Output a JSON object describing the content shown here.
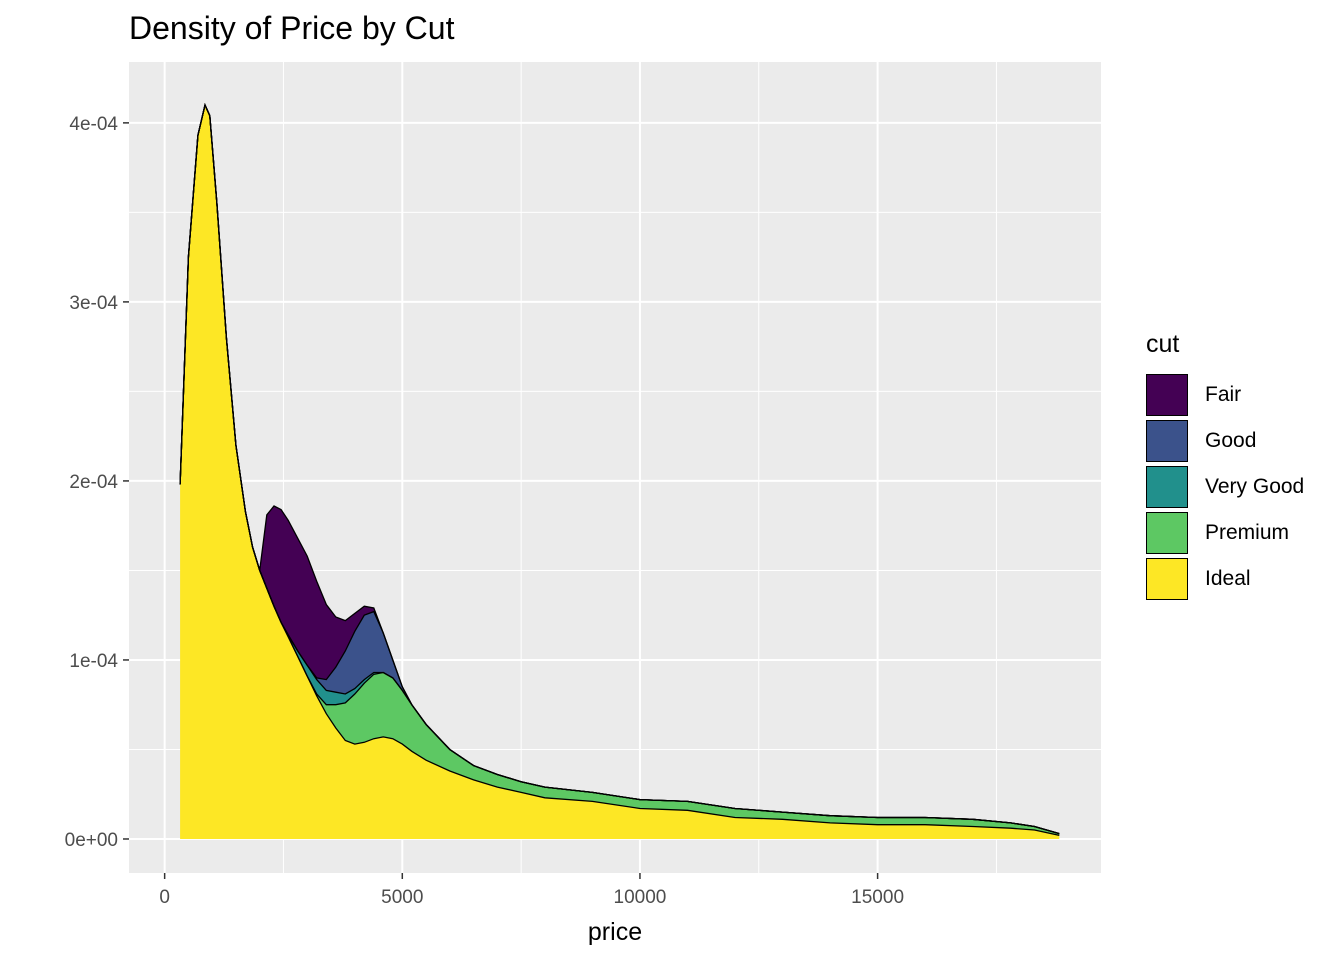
{
  "chart_data": {
    "type": "area",
    "stacked": true,
    "title": "Density of Price by Cut",
    "xlabel": "price",
    "ylabel": "",
    "xlim": [
      -750,
      19700
    ],
    "ylim": [
      -1.9e-05,
      0.000434
    ],
    "xticks": [
      0,
      5000,
      10000,
      15000
    ],
    "xtick_labels": [
      "0",
      "5000",
      "10000",
      "15000"
    ],
    "yticks": [
      0,
      0.0001,
      0.0002,
      0.0003,
      0.0004
    ],
    "ytick_labels": [
      "0e+00",
      "1e-04",
      "2e-04",
      "3e-04",
      "4e-04"
    ],
    "grid": true,
    "legend_title": "cut",
    "legend_position": "right",
    "x": [
      326,
      500,
      700,
      850,
      950,
      1100,
      1300,
      1500,
      1700,
      1850,
      2000,
      2150,
      2300,
      2450,
      2600,
      2800,
      3000,
      3200,
      3400,
      3600,
      3800,
      4000,
      4200,
      4400,
      4600,
      4800,
      5000,
      5200,
      5500,
      6000,
      6500,
      7000,
      7500,
      8000,
      9000,
      10000,
      11000,
      12000,
      13000,
      14000,
      15000,
      16000,
      17000,
      17800,
      18300,
      18823
    ],
    "series": [
      {
        "name": "Ideal",
        "color": "#FDE725",
        "values": [
          0.000198,
          0.000325,
          0.000393,
          0.00041,
          0.000404,
          0.000355,
          0.00028,
          0.00022,
          0.000183,
          0.000163,
          0.00015,
          0.00014,
          0.00013,
          0.000121,
          0.000113,
          0.000102,
          9.1e-05,
          8e-05,
          7e-05,
          6.2e-05,
          5.5e-05,
          5.3e-05,
          5.4e-05,
          5.6e-05,
          5.7e-05,
          5.6e-05,
          5.3e-05,
          4.9e-05,
          4.4e-05,
          3.8e-05,
          3.3e-05,
          2.9e-05,
          2.6e-05,
          2.3e-05,
          2.1e-05,
          1.7e-05,
          1.6e-05,
          1.2e-05,
          1.1e-05,
          9e-06,
          8e-06,
          8e-06,
          7e-06,
          6e-06,
          5e-06,
          2e-06
        ]
      },
      {
        "name": "Premium",
        "color": "#5DC863",
        "values": [
          0,
          0,
          0,
          0,
          0,
          0,
          0,
          0,
          0,
          0,
          0,
          0,
          0,
          0,
          0,
          0,
          0,
          1e-06,
          5e-06,
          1.3e-05,
          2.1e-05,
          2.8e-05,
          3.3e-05,
          3.6e-05,
          3.6e-05,
          3.4e-05,
          3e-05,
          2.6e-05,
          2e-05,
          1.2e-05,
          8e-06,
          7e-06,
          6e-06,
          6e-06,
          5e-06,
          5e-06,
          5e-06,
          5e-06,
          4e-06,
          4e-06,
          4e-06,
          4e-06,
          4e-06,
          3e-06,
          2e-06,
          1e-06
        ]
      },
      {
        "name": "Very Good",
        "color": "#21908C",
        "values": [
          0,
          0,
          0,
          0,
          0,
          0,
          0,
          0,
          0,
          0,
          0,
          0,
          0,
          0,
          1e-06,
          3e-06,
          6e-06,
          8e-06,
          8e-06,
          7e-06,
          5e-06,
          3e-06,
          2e-06,
          1e-06,
          0,
          0,
          0,
          0,
          0,
          0,
          0,
          0,
          0,
          0,
          0,
          0,
          0,
          0,
          0,
          0,
          0,
          0,
          0,
          0,
          0,
          0
        ]
      },
      {
        "name": "Good",
        "color": "#3B528B",
        "values": [
          0,
          0,
          0,
          0,
          0,
          0,
          0,
          0,
          0,
          0,
          0,
          0,
          0,
          0,
          0,
          0,
          0,
          1e-06,
          6e-06,
          1.4e-05,
          2.4e-05,
          3.2e-05,
          3.6e-05,
          3.4e-05,
          2.2e-05,
          1e-05,
          2e-06,
          0,
          0,
          0,
          0,
          0,
          0,
          0,
          0,
          0,
          0,
          0,
          0,
          0,
          0,
          0,
          0,
          0,
          0,
          0
        ]
      },
      {
        "name": "Fair",
        "color": "#440154",
        "values": [
          0,
          0,
          0,
          0,
          0,
          0,
          0,
          0,
          0,
          0,
          0,
          4.1e-05,
          5.6e-05,
          6.3e-05,
          6.4e-05,
          6.3e-05,
          6.1e-05,
          5.4e-05,
          4.2e-05,
          2.8e-05,
          1.7e-05,
          1e-05,
          5e-06,
          2e-06,
          0,
          0,
          0,
          0,
          0,
          0,
          0,
          0,
          0,
          0,
          0,
          0,
          0,
          0,
          0,
          0,
          0,
          0,
          0,
          0,
          0,
          0
        ]
      }
    ]
  }
}
